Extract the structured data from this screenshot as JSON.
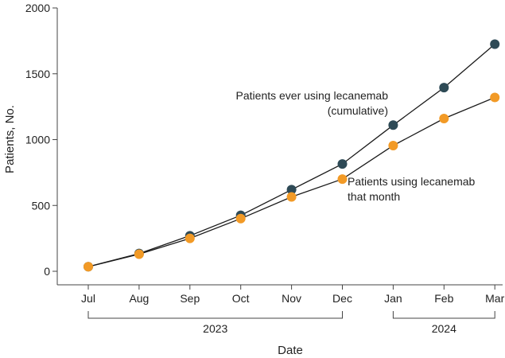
{
  "chart_data": {
    "type": "line",
    "xlabel": "Date",
    "ylabel": "Patients, No.",
    "ylim": [
      0,
      2000
    ],
    "yticks": [
      0,
      500,
      1000,
      1500,
      2000
    ],
    "categories": [
      "Jul",
      "Aug",
      "Sep",
      "Oct",
      "Nov",
      "Dec",
      "Jan",
      "Feb",
      "Mar"
    ],
    "year_groups": [
      {
        "label": "2023",
        "from": "Jul",
        "to": "Dec"
      },
      {
        "label": "2024",
        "from": "Jan",
        "to": "Mar"
      }
    ],
    "grid": false,
    "series": [
      {
        "name": "Patients ever using lecanemab (cumulative)",
        "label_lines": [
          "Patients ever using lecanemab",
          "(cumulative)"
        ],
        "color": "#2e4a56",
        "values": [
          35,
          135,
          270,
          425,
          620,
          815,
          1110,
          1395,
          1725
        ]
      },
      {
        "name": "Patients using lecanemab that month",
        "label_lines": [
          "Patients using lecanemab",
          "that month"
        ],
        "color": "#f29a26",
        "values": [
          35,
          130,
          250,
          400,
          565,
          700,
          955,
          1160,
          1320
        ]
      }
    ]
  }
}
